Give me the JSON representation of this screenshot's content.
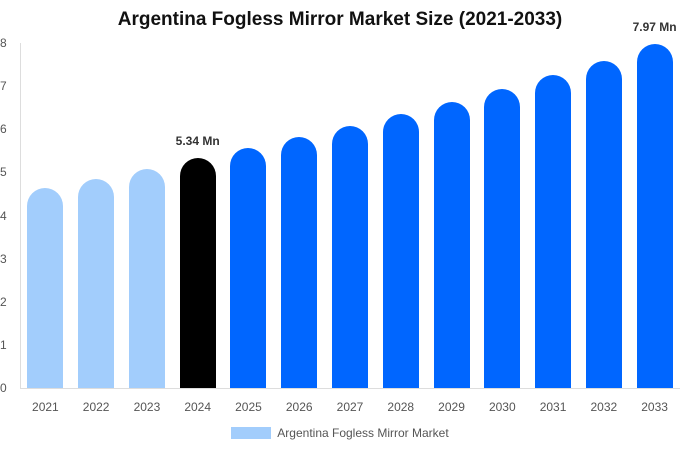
{
  "chart_data": {
    "type": "bar",
    "title": "Argentina Fogless Mirror Market Size (2021-2033)",
    "xlabel": "",
    "ylabel": "",
    "ylim": [
      0,
      8
    ],
    "yticks": [
      "0",
      "1",
      "2",
      "3",
      "4",
      "5",
      "6",
      "7",
      "8"
    ],
    "categories": [
      "2021",
      "2022",
      "2023",
      "2024",
      "2025",
      "2026",
      "2027",
      "2028",
      "2029",
      "2030",
      "2031",
      "2032",
      "2033"
    ],
    "series": [
      {
        "name": "Argentina Fogless Mirror Market",
        "values": [
          4.64,
          4.85,
          5.08,
          5.34,
          5.57,
          5.82,
          6.08,
          6.36,
          6.64,
          6.94,
          7.26,
          7.59,
          7.97
        ]
      }
    ],
    "bar_colors": [
      "#a2cdfc",
      "#a2cdfc",
      "#a2cdfc",
      "#000000",
      "#0066ff",
      "#0066ff",
      "#0066ff",
      "#0066ff",
      "#0066ff",
      "#0066ff",
      "#0066ff",
      "#0066ff",
      "#0066ff"
    ],
    "annotations": [
      {
        "category": "2024",
        "text": "5.34 Mn"
      },
      {
        "category": "2033",
        "text": "7.97 Mn"
      }
    ],
    "grid": false,
    "legend_position": "bottom"
  },
  "legend": {
    "label": "Argentina Fogless Mirror Market",
    "color": "#a2cdfc"
  }
}
